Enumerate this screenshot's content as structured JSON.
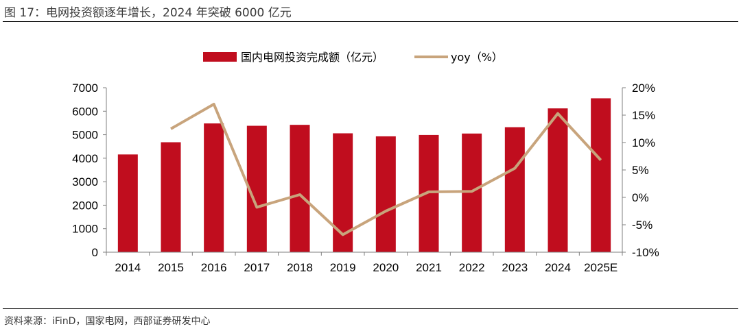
{
  "figure": {
    "title": "图 17：电网投资额逐年增长，2024 年突破 6000 亿元",
    "source": "资料来源：iFinD，国家电网，西部证券研发中心"
  },
  "chart_data": {
    "type": "bar+line",
    "categories": [
      "2014",
      "2015",
      "2016",
      "2017",
      "2018",
      "2019",
      "2020",
      "2021",
      "2022",
      "2023",
      "2024",
      "2025E"
    ],
    "series": [
      {
        "name": "国内电网投资完成额（亿元）",
        "type": "bar",
        "axis": "left",
        "color": "#c00d1e",
        "values": [
          4160,
          4680,
          5480,
          5380,
          5420,
          5060,
          4930,
          4990,
          5050,
          5320,
          6120,
          6550
        ]
      },
      {
        "name": "yoy（%）",
        "type": "line",
        "axis": "right",
        "color": "#c8a47c",
        "values": [
          null,
          12.5,
          17.0,
          -1.8,
          0.5,
          -6.8,
          -2.5,
          1.0,
          1.1,
          5.3,
          15.3,
          6.8
        ]
      }
    ],
    "left_axis": {
      "min": 0,
      "max": 7000,
      "ticks": [
        "0",
        "1000",
        "2000",
        "3000",
        "4000",
        "5000",
        "6000",
        "7000"
      ]
    },
    "right_axis": {
      "min": -10,
      "max": 20,
      "ticks": [
        "-10%",
        "-5%",
        "0%",
        "5%",
        "10%",
        "15%",
        "20%"
      ]
    },
    "legend": "top-center",
    "grid": false
  }
}
